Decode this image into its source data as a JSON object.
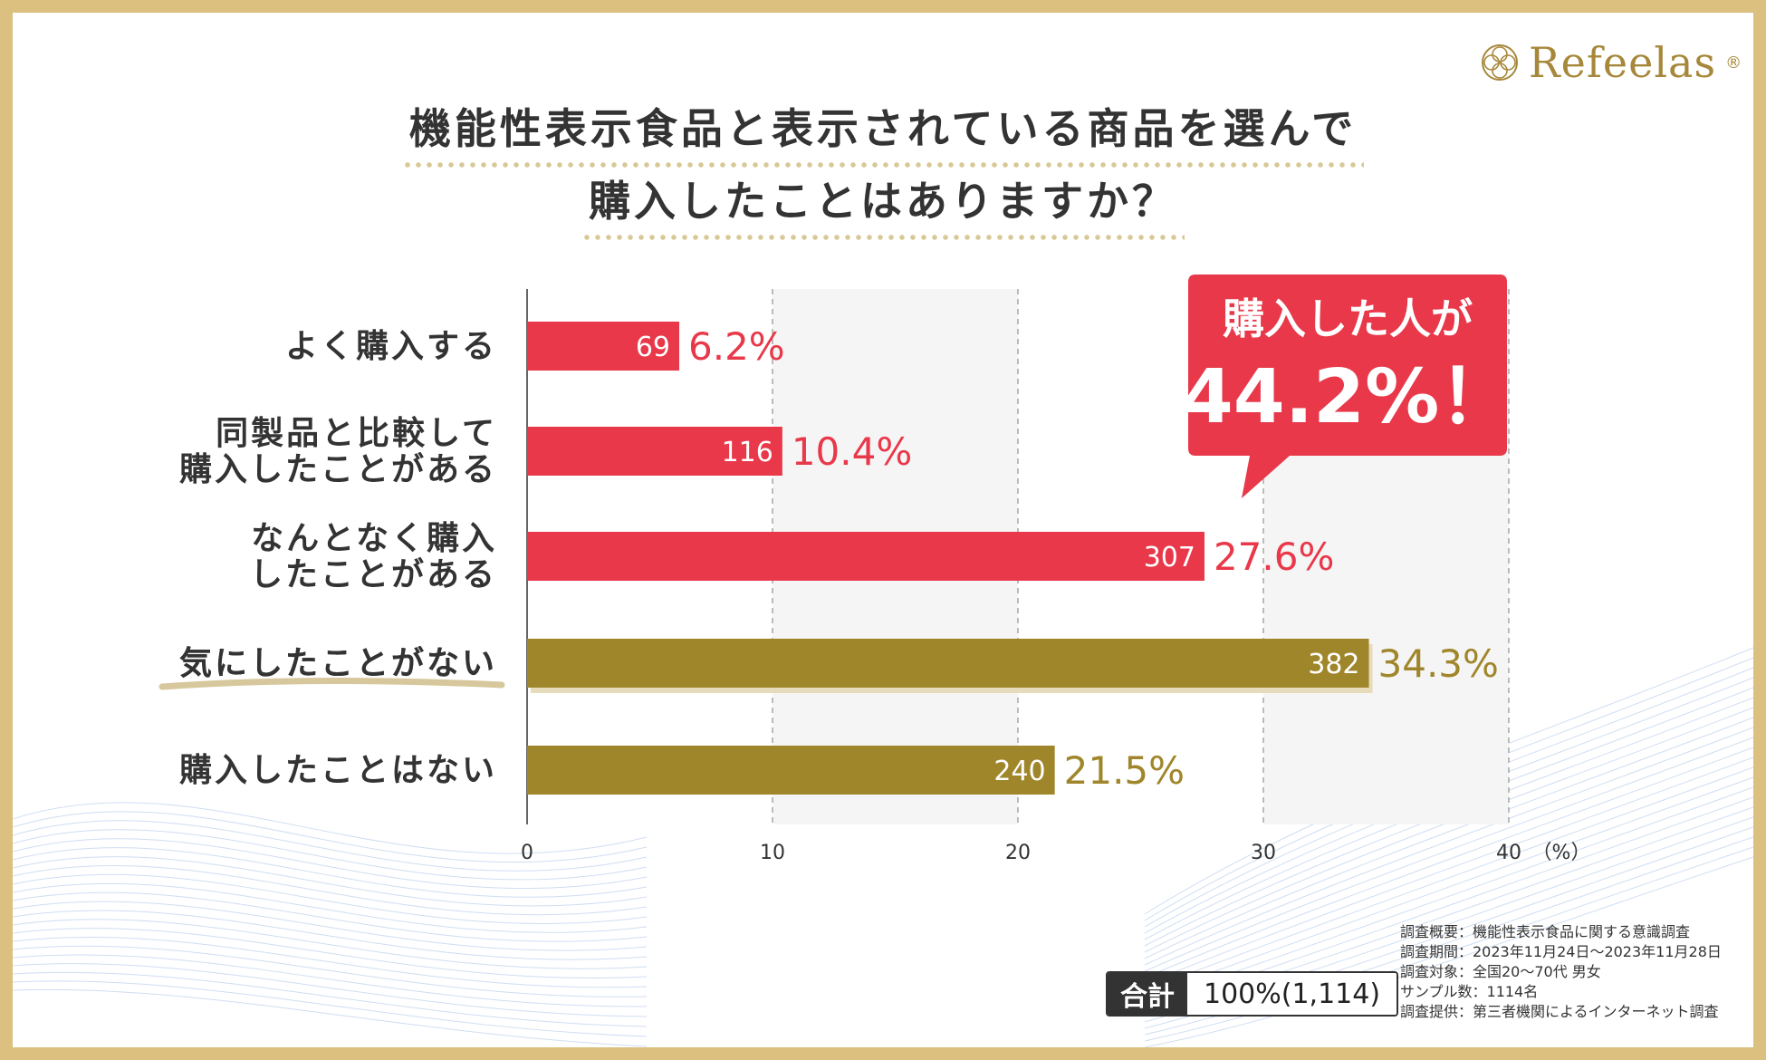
{
  "brand": {
    "name": "Refeelas",
    "mark": "®",
    "icon": "ornamental-circle-logo-icon"
  },
  "title": {
    "line1": "機能性表示食品と表示されている商品を選んで",
    "line2": "購入したことはありますか？"
  },
  "callout": {
    "line1": "購入した人が",
    "line2": "44.2%！"
  },
  "chart_data": {
    "type": "bar",
    "orientation": "horizontal",
    "categories": [
      [
        "よく購入する"
      ],
      [
        "同製品と比較して",
        "購入したことがある"
      ],
      [
        "なんとなく購入",
        "したことがある"
      ],
      [
        "気にしたことがない"
      ],
      [
        "購入したことはない"
      ]
    ],
    "counts": [
      "69",
      "116",
      "307",
      "382",
      "240"
    ],
    "values": [
      6.2,
      10.4,
      27.6,
      34.3,
      21.5
    ],
    "pct_labels": [
      "6.2%",
      "10.4%",
      "27.6%",
      "34.3%",
      "21.5%"
    ],
    "bar_colors": [
      "#e8384a",
      "#e8384a",
      "#e8384a",
      "#a0862b",
      "#a0862b"
    ],
    "highlight_index": 3,
    "xlim": [
      0,
      40
    ],
    "x_ticks": [
      "0",
      "10",
      "20",
      "30",
      "40"
    ],
    "x_unit": "（%）",
    "grid": true
  },
  "total": {
    "label": "合計",
    "value": "100%(1,114)"
  },
  "notes": [
    "調査概要：機能性表示食品に関する意識調査",
    "調査期間：2023年11月24日～2023年11月28日",
    "調査対象：全国20～70代 男女",
    "サンプル数：1114名",
    "調査提供：第三者機関によるインターネット調査"
  ],
  "colors": {
    "red": "#e8384a",
    "gold": "#a0862b",
    "frame": "#dcc07f",
    "text": "#333333"
  }
}
